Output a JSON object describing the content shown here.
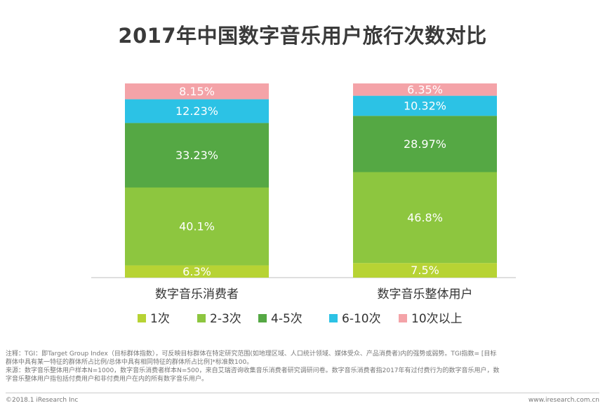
{
  "chart_data": {
    "type": "bar",
    "stacked": true,
    "normalized": true,
    "title": "2017年中国数字音乐用户旅行次数对比",
    "categories": [
      "数字音乐消费者",
      "数字音乐整体用户"
    ],
    "series": [
      {
        "name": "1次",
        "color": "#b7d334",
        "values": [
          6.3,
          7.5
        ],
        "labels": [
          "6.3%",
          "7.5%"
        ]
      },
      {
        "name": "2-3次",
        "color": "#8dc63f",
        "values": [
          40.1,
          46.8
        ],
        "labels": [
          "40.1%",
          "46.8%"
        ]
      },
      {
        "name": "4-5次",
        "color": "#55a844",
        "values": [
          33.23,
          28.97
        ],
        "labels": [
          "33.23%",
          "28.97%"
        ]
      },
      {
        "name": "6-10次",
        "color": "#2cc2e5",
        "values": [
          12.23,
          10.32
        ],
        "labels": [
          "12.23%",
          "10.32%"
        ]
      },
      {
        "name": "10次以上",
        "color": "#f4a3a8",
        "values": [
          8.15,
          6.35
        ],
        "labels": [
          "8.15%",
          "6.35%"
        ]
      }
    ],
    "xlabel": "",
    "ylabel": "",
    "ylim": [
      0,
      100
    ],
    "grid": false,
    "legend_position": "bottom"
  },
  "notes": {
    "line1": "注释：TGI：即Target Group Index（目标群体指数），可反映目标群体在特定研究范围(如地理区域、人口统计领域、媒体受众、产品消费者)内的强势或弱势。TGI指数= [目标",
    "line2": "群体中具有某一特征的群体所占比例/总体中具有相同特征的群体所占比例]*标准数100。",
    "line3": "来源：数字音乐整体用户样本N=1000，数字音乐消费者样本N=500，来自艾瑞咨询收集音乐消费者研究调研问卷。数字音乐消费者指2017年有过付费行为的数字音乐用户，数",
    "line4": "字音乐整体用户指包括付费用户和非付费用户在内的所有数字音乐用户。"
  },
  "footer": {
    "copyright": "©2018.1 iResearch Inc",
    "website": "www.iresearch.com.cn"
  }
}
